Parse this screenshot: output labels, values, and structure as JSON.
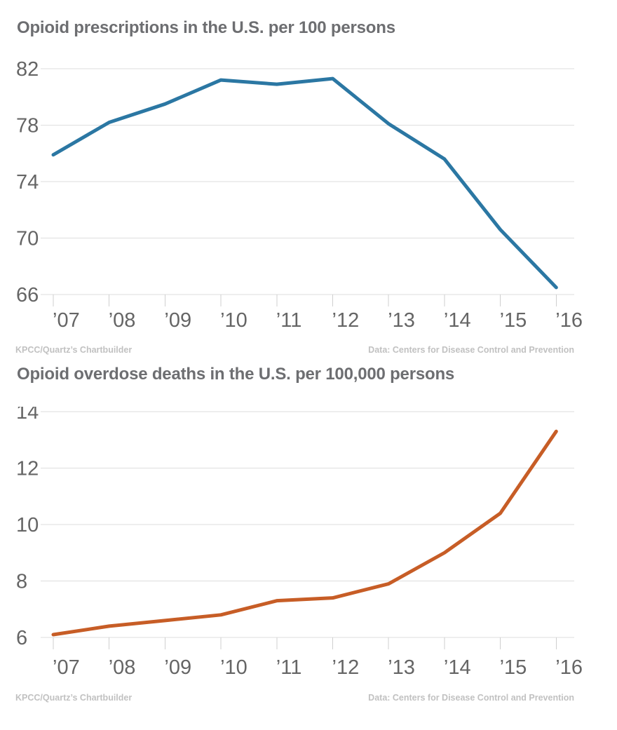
{
  "page": {
    "background": "#ffffff",
    "grid_color": "#dedede",
    "tick_color": "#cfcfcf",
    "axis_label_color": "#656565",
    "title_color": "#6d6e71",
    "credit_color": "#c1c1c1"
  },
  "chart_data": [
    {
      "type": "line",
      "title": "Opioid prescriptions in the U.S. per 100 persons",
      "categories": [
        "’07",
        "’08",
        "’09",
        "’10",
        "’11",
        "’12",
        "’13",
        "’14",
        "’15",
        "’16"
      ],
      "values": [
        75.9,
        78.2,
        79.5,
        81.2,
        80.9,
        81.3,
        78.1,
        75.6,
        70.6,
        66.5
      ],
      "xlabel": "",
      "ylabel": "",
      "ylim": [
        66,
        82
      ],
      "yticks": [
        82,
        78,
        74,
        70,
        66
      ],
      "grid": true,
      "legend": "none",
      "line_color": "#2b77a3",
      "credit_left": "KPCC/Quartz’s Chartbuilder",
      "credit_right": "Data: Centers for Disease Control and Prevention"
    },
    {
      "type": "line",
      "title": "Opioid overdose deaths in the U.S. per 100,000 persons",
      "categories": [
        "’07",
        "’08",
        "’09",
        "’10",
        "’11",
        "’12",
        "’13",
        "’14",
        "’15",
        "’16"
      ],
      "values": [
        6.1,
        6.4,
        6.6,
        6.8,
        7.3,
        7.4,
        7.9,
        9.0,
        10.4,
        13.3
      ],
      "xlabel": "",
      "ylabel": "",
      "ylim": [
        6,
        14
      ],
      "yticks": [
        14,
        12,
        10,
        8,
        6
      ],
      "grid": true,
      "legend": "none",
      "line_color": "#c75d26",
      "credit_left": "KPCC/Quartz’s Chartbuilder",
      "credit_right": "Data: Centers for Disease Control and Prevention"
    }
  ]
}
